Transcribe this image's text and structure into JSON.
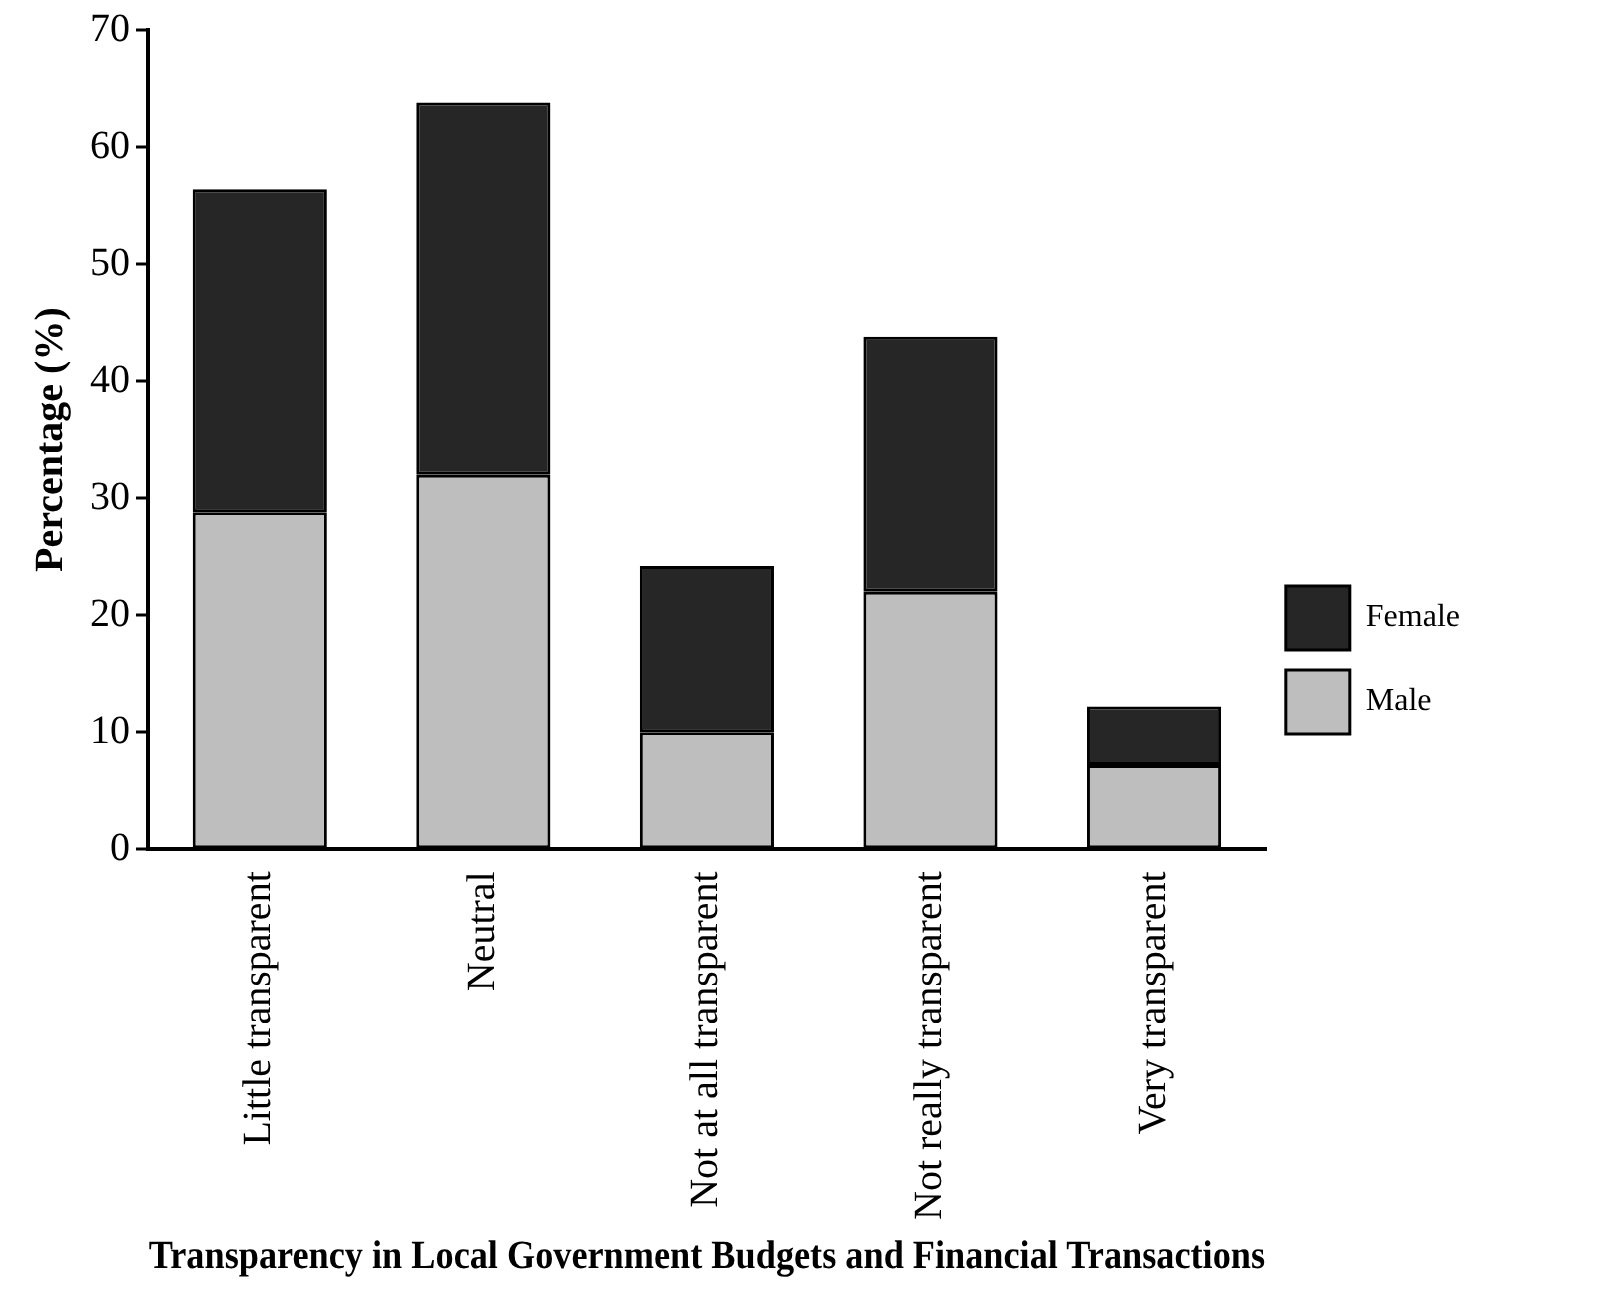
{
  "chart_data": {
    "type": "bar",
    "stacked": true,
    "xlabel": "Transparency in Local Government Budgets and Financial Transactions",
    "ylabel": "Percentage (%)",
    "categories": [
      "Little transparent",
      "Neutral",
      "Not at all transparent",
      "Not really transparent",
      "Very transparent"
    ],
    "series": [
      {
        "name": "Male",
        "color": "#bebebe",
        "values": [
          28.8,
          32,
          10,
          22,
          7.2
        ]
      },
      {
        "name": "Female",
        "color": "#262626",
        "values": [
          27.6,
          31.8,
          14.2,
          21.8,
          5
        ]
      }
    ],
    "ylim": [
      0,
      70
    ],
    "yticks": [
      0,
      10,
      20,
      30,
      40,
      50,
      60,
      70
    ],
    "grid": false,
    "legend": "right"
  }
}
